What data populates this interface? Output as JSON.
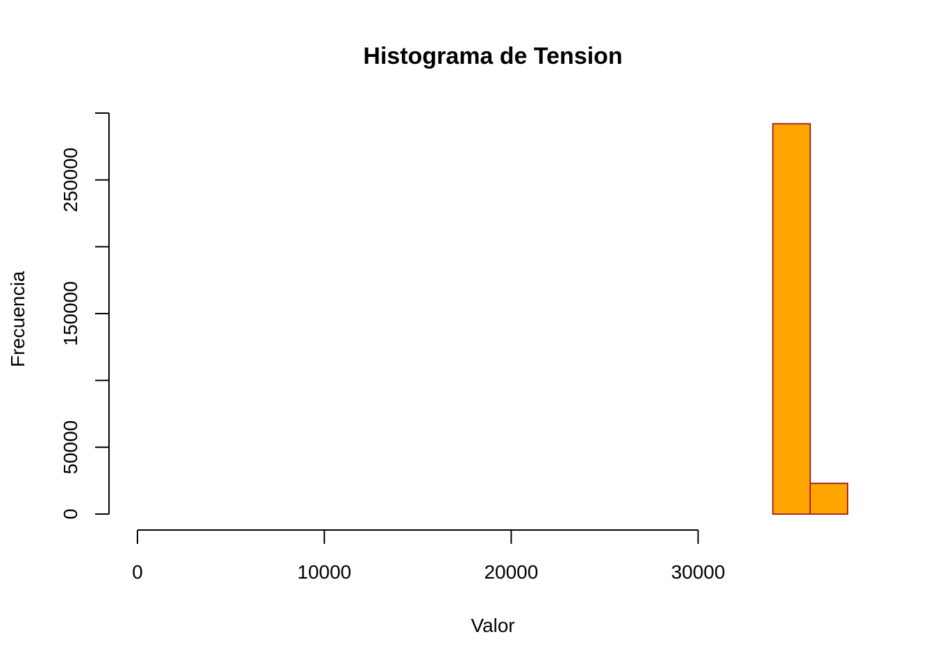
{
  "chart_data": {
    "type": "bar",
    "title": "Histograma de Tension",
    "xlabel": "Valor",
    "ylabel": "Frecuencia",
    "bins": [
      {
        "start": 0,
        "end": 2000,
        "count": 0
      },
      {
        "start": 2000,
        "end": 4000,
        "count": 0
      },
      {
        "start": 4000,
        "end": 6000,
        "count": 0
      },
      {
        "start": 6000,
        "end": 8000,
        "count": 0
      },
      {
        "start": 8000,
        "end": 10000,
        "count": 0
      },
      {
        "start": 10000,
        "end": 12000,
        "count": 0
      },
      {
        "start": 12000,
        "end": 14000,
        "count": 0
      },
      {
        "start": 14000,
        "end": 16000,
        "count": 0
      },
      {
        "start": 16000,
        "end": 18000,
        "count": 0
      },
      {
        "start": 18000,
        "end": 20000,
        "count": 0
      },
      {
        "start": 20000,
        "end": 22000,
        "count": 0
      },
      {
        "start": 22000,
        "end": 24000,
        "count": 0
      },
      {
        "start": 24000,
        "end": 26000,
        "count": 0
      },
      {
        "start": 26000,
        "end": 28000,
        "count": 0
      },
      {
        "start": 28000,
        "end": 30000,
        "count": 0
      },
      {
        "start": 30000,
        "end": 32000,
        "count": 0
      },
      {
        "start": 32000,
        "end": 34000,
        "count": 0
      },
      {
        "start": 34000,
        "end": 36000,
        "count": 292000
      },
      {
        "start": 36000,
        "end": 38000,
        "count": 23000
      }
    ],
    "xlim": [
      0,
      38000
    ],
    "ylim": [
      0,
      300000
    ],
    "xticks": [
      0,
      10000,
      20000,
      30000
    ],
    "xtick_labels": [
      "0",
      "10000",
      "20000",
      "30000"
    ],
    "yticks": [
      0,
      50000,
      100000,
      150000,
      200000,
      250000,
      300000
    ],
    "yticks_labeled": [
      0,
      50000,
      150000,
      250000
    ],
    "ytick_labels": [
      "0",
      "50000",
      "150000",
      "250000"
    ],
    "grid": false,
    "bar_fill": "#ffa500",
    "bar_border": "#a52a2a"
  }
}
